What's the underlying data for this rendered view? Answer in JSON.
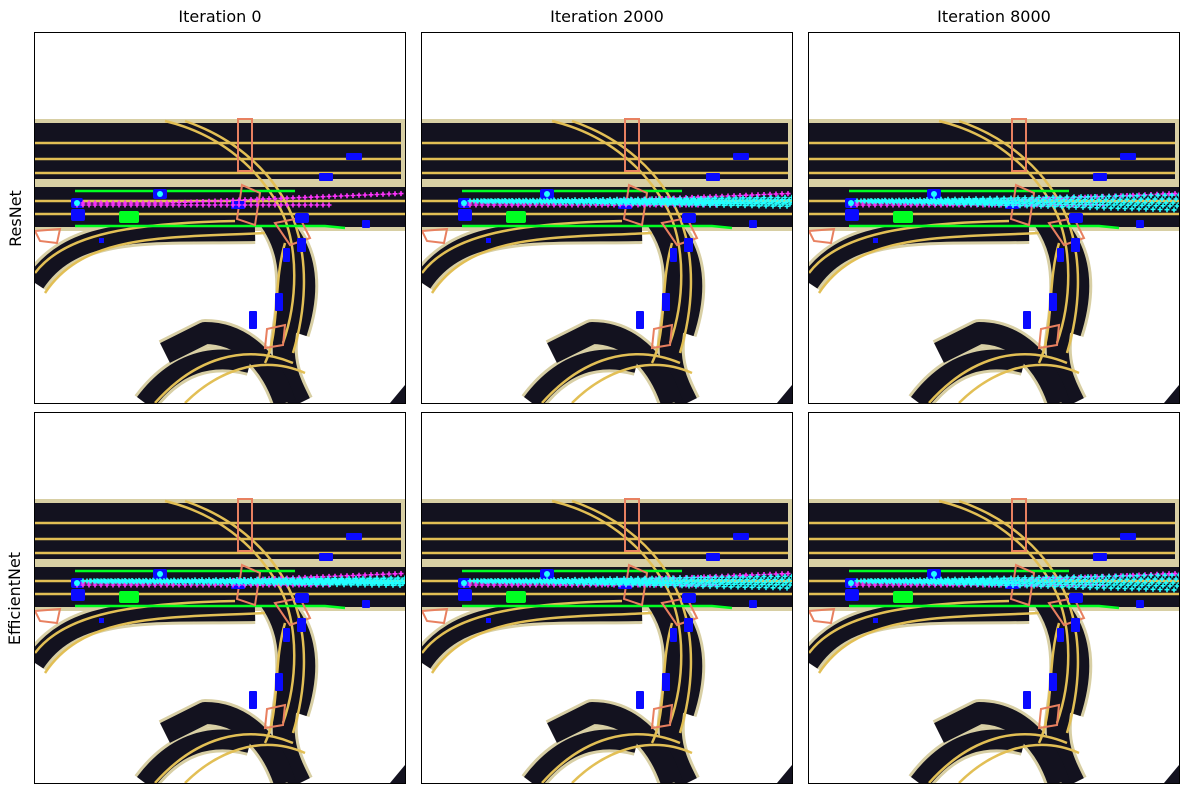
{
  "columns": [
    {
      "title": "Iteration 0"
    },
    {
      "title": "Iteration 2000"
    },
    {
      "title": "Iteration 8000"
    }
  ],
  "rows": [
    {
      "label": "ResNet"
    },
    {
      "label": "EfficientNet"
    }
  ],
  "colors": {
    "road": "#13121f",
    "road_edge": "#d8cfa4",
    "lane_line": "#e2bf55",
    "crosswalk": "#e88060",
    "agent": "#0a0aff",
    "ego": "#00ff22",
    "ground_truth": "#ff33ff",
    "prediction": "#22ffff"
  },
  "panels": [
    {
      "row": 0,
      "col": 0,
      "prediction_spread": 0.0
    },
    {
      "row": 0,
      "col": 1,
      "prediction_spread": 0.6
    },
    {
      "row": 0,
      "col": 2,
      "prediction_spread": 1.0
    },
    {
      "row": 1,
      "col": 0,
      "prediction_spread": 0.5
    },
    {
      "row": 1,
      "col": 1,
      "prediction_spread": 0.8
    },
    {
      "row": 1,
      "col": 2,
      "prediction_spread": 1.0
    }
  ]
}
